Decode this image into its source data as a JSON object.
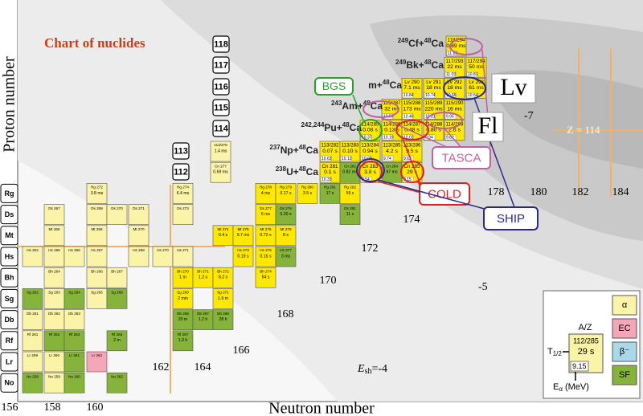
{
  "title": "Chart of nuclides",
  "y_axis_label": "Proton number",
  "x_axis_label": "Neutron number",
  "elements": [
    "Rg",
    "Ds",
    "Mt",
    "Hs",
    "Bh",
    "Sg",
    "Db",
    "Rf",
    "Lr",
    "No"
  ],
  "proton_numbers": [
    "118",
    "117",
    "116",
    "115",
    "114",
    "113",
    "112"
  ],
  "neutron_numbers_bottom": [
    "156",
    "158",
    "160"
  ],
  "neutron_numbers_diagonal": [
    "162",
    "164",
    "166",
    "168",
    "170",
    "172",
    "174",
    "178",
    "180",
    "182",
    "184"
  ],
  "shell_contours": [
    "-7",
    "-5"
  ],
  "shell_energy_label": {
    "symbol": "E",
    "subscript": "sh",
    "value": "=-4"
  },
  "reactions": [
    {
      "pre": "249",
      "target": "Cf+",
      "sup": "48",
      "beam": "Ca"
    },
    {
      "pre": "249",
      "target": "Bk+",
      "sup": "48",
      "beam": "Ca"
    },
    {
      "target": "m+",
      "sup": "48",
      "beam": "Ca"
    },
    {
      "pre": "243",
      "target": "Am+",
      "sup": "48",
      "beam": "Ca"
    },
    {
      "pre": "242,244",
      "target": "Pu+",
      "sup": "48",
      "beam": "Ca"
    },
    {
      "pre": "237",
      "target": "Np+",
      "sup": "48",
      "beam": "Ca"
    },
    {
      "pre": "238",
      "target": "U+",
      "sup": "48",
      "beam": "Ca"
    }
  ],
  "labs": {
    "bgs": "BGS",
    "tasca": "TASCA",
    "cold": "COLD",
    "ship": "SHIP"
  },
  "big_symbols": {
    "lv": "Lv",
    "fl": "Fl"
  },
  "z114_label": "Z = 114",
  "legend": {
    "modes": [
      {
        "label": "α",
        "color": "#fbf3a8"
      },
      {
        "label": "EC",
        "color": "#f4a7b9"
      },
      {
        "label": "β⁻",
        "color": "#a9d9e8"
      },
      {
        "label": "SF",
        "color": "#86b43a"
      }
    ],
    "mass_label": "A/Z",
    "cell": [
      "112/285",
      "29 s",
      "9.15"
    ],
    "half_life": {
      "symbol": "T",
      "subscript": "1/2"
    },
    "energy": {
      "symbol": "E",
      "subscript": "α",
      "unit": "(MeV)"
    }
  },
  "rows": [
    {
      "cells": [
        {
          "lines": [
            "118/294",
            "0.89 ms",
            "11.65"
          ],
          "color": "#ffe800"
        }
      ]
    },
    {
      "cells": [
        {
          "lines": [
            "117/293",
            "22 ms",
            "11.03"
          ],
          "color": "#ffe800"
        },
        {
          "lines": [
            "117/294",
            "50 ms",
            "10.81"
          ],
          "color": "#ffe800"
        }
      ]
    },
    {
      "cells": [
        {
          "lines": [
            "Lv 290",
            "7.1 ms",
            "10.84"
          ],
          "color": "#ffe800"
        },
        {
          "lines": [
            "Lv 291",
            "18 ms",
            "10.74"
          ],
          "color": "#ffe800"
        },
        {
          "lines": [
            "Lv 292",
            "18 ms",
            "10.66"
          ],
          "color": "#ffe800"
        },
        {
          "lines": [
            "Lv 293",
            "61 ms",
            "10.54"
          ],
          "color": "#ffe800"
        }
      ]
    },
    {
      "cells": [
        {
          "lines": [
            "115/287",
            "32 ms",
            "10.59"
          ],
          "color": "#ffe800"
        },
        {
          "lines": [
            "115/288",
            "173 ms",
            "10.46"
          ],
          "color": "#ffe800"
        },
        {
          "lines": [
            "115/289",
            "220 ms",
            "10.31"
          ],
          "color": "#ffe800"
        },
        {
          "lines": [
            "115/290",
            "16 ms",
            "9.95"
          ],
          "color": "#ffe800"
        }
      ]
    },
    {
      "cells": [
        {
          "lines": [
            "114/285",
            "0.08 s",
            "10.37"
          ],
          "color": "#ffe800"
        },
        {
          "lines": [
            "114/286",
            "0.13 s",
            "10.19"
          ],
          "color": "#ffe800"
        },
        {
          "lines": [
            "114/287",
            "0.48 s",
            "10.02"
          ],
          "color": "#ffe800"
        },
        {
          "lines": [
            "114/288",
            "0.80 s",
            "9.94"
          ],
          "color": "#ffe800"
        },
        {
          "lines": [
            "114/289",
            "2.6 s",
            "9.82"
          ],
          "color": "#ffe800"
        }
      ]
    },
    {
      "cells": [
        {
          "lines": [
            "113/278",
            "1.4 ms"
          ],
          "color": "#fbf3a8"
        },
        {
          "lines": [
            "113/282",
            "0.07 s",
            "10.63"
          ],
          "color": "#ffe800"
        },
        {
          "lines": [
            "113/283",
            "0.10 s",
            "10.12"
          ],
          "color": "#ffe800"
        },
        {
          "lines": [
            "113/284",
            "0.94 s",
            "10.00"
          ],
          "color": "#ffe800"
        },
        {
          "lines": [
            "113/285",
            "4.2 s",
            "9.74"
          ],
          "color": "#ffe800"
        },
        {
          "lines": [
            "113/286",
            "9.5 s",
            "9.63"
          ],
          "color": "#ffe800"
        }
      ]
    },
    {
      "cells": [
        {
          "lines": [
            "Cn 277",
            "0.69 ms"
          ],
          "color": "#fbf3a8"
        },
        {
          "lines": [
            "Cn 281",
            "0.1 s",
            "10.33"
          ],
          "color": "#ffe800"
        },
        {
          "lines": [
            "Cn 282",
            "0.82 ms"
          ],
          "color": "#86b43a"
        },
        {
          "lines": [
            "Cn 283",
            "3.8 s",
            "9.54"
          ],
          "color": "#ffe800"
        },
        {
          "lines": [
            "Cn 284",
            "97 ms"
          ],
          "color": "#86b43a"
        },
        {
          "lines": [
            "Cn 285",
            "29 s",
            "9.15"
          ],
          "color": "#ffe800"
        }
      ]
    },
    {
      "cells": [
        {
          "lines": [
            "Rg 272",
            "3.8 ms"
          ],
          "color": "#fbf3a8"
        },
        {
          "lines": [
            "Rg 274",
            "6.4 ms"
          ],
          "color": "#fbf3a8"
        },
        {
          "lines": [
            "Rg 278",
            "4 ms"
          ],
          "color": "#ffe800"
        },
        {
          "lines": [
            "Rg 279",
            "0.17 s"
          ],
          "color": "#ffe800"
        },
        {
          "lines": [
            "Rg 280",
            "3.5 s"
          ],
          "color": "#ffe800"
        },
        {
          "lines": [
            "Rg 281",
            "17 s"
          ],
          "color": "#86b43a"
        },
        {
          "lines": [
            "Rg 282",
            "59 s"
          ],
          "color": "#ffe800"
        }
      ]
    },
    {
      "cells": [
        {
          "lines": [
            "Ds 267"
          ],
          "color": "#fbf3a8"
        },
        {
          "lines": [
            "Ds 269"
          ],
          "color": "#fbf3a8"
        },
        {
          "lines": [
            "Ds 270"
          ],
          "color": "#fbf3a8"
        },
        {
          "lines": [
            "Ds 271"
          ],
          "color": "#fbf3a8"
        },
        {
          "lines": [
            "Ds 273"
          ],
          "color": "#fbf3a8"
        },
        {
          "lines": [
            "Ds 277",
            "6 ms"
          ],
          "color": "#ffe800"
        },
        {
          "lines": [
            "Ds 279",
            "0.20 s"
          ],
          "color": "#86b43a"
        },
        {
          "lines": [
            "Ds 281",
            "11 s"
          ],
          "color": "#86b43a"
        }
      ]
    },
    {
      "cells": [
        {
          "lines": [
            "Mt 266"
          ],
          "color": "#fbf3a8"
        },
        {
          "lines": [
            "Mt 268"
          ],
          "color": "#fbf3a8"
        },
        {
          "lines": [
            "Mt 270"
          ],
          "color": "#fbf3a8"
        },
        {
          "lines": [
            "Mt 274",
            "0.4 s"
          ],
          "color": "#ffe800"
        },
        {
          "lines": [
            "Mt 275",
            "9.7 ms"
          ],
          "color": "#ffe800"
        },
        {
          "lines": [
            "Mt 276",
            "0.72 s"
          ],
          "color": "#ffe800"
        },
        {
          "lines": [
            "Mt 278",
            "8 s"
          ],
          "color": "#ffe800"
        }
      ]
    },
    {
      "cells": [
        {
          "lines": [
            "Hs 264"
          ],
          "color": "#fbf3a8"
        },
        {
          "lines": [
            "Hs 265"
          ],
          "color": "#fbf3a8"
        },
        {
          "lines": [
            "Hs 266"
          ],
          "color": "#fbf3a8"
        },
        {
          "lines": [
            "Hs 267"
          ],
          "color": "#fbf3a8"
        },
        {
          "lines": [
            "Hs 269"
          ],
          "color": "#fbf3a8"
        },
        {
          "lines": [
            "Hs 270"
          ],
          "color": "#fbf3a8"
        },
        {
          "lines": [
            "Hs 271"
          ],
          "color": "#fbf3a8"
        },
        {
          "lines": [
            "Hs 273",
            "0.19 s"
          ],
          "color": "#ffe800"
        },
        {
          "lines": [
            "Hs 275",
            "0.15 s"
          ],
          "color": "#ffe800"
        },
        {
          "lines": [
            "Hs 277",
            "3 ms"
          ],
          "color": "#86b43a"
        }
      ]
    },
    {
      "cells": [
        {
          "lines": [
            "Bh 264"
          ],
          "color": "#fbf3a8"
        },
        {
          "lines": [
            "Bh 266"
          ],
          "color": "#fbf3a8"
        },
        {
          "lines": [
            "Bh 267"
          ],
          "color": "#fbf3a8"
        },
        {
          "lines": [
            "Bh 270",
            "1 m"
          ],
          "color": "#ffe800"
        },
        {
          "lines": [
            "Bh 271",
            "1.2 s"
          ],
          "color": "#ffe800"
        },
        {
          "lines": [
            "Bh 272",
            "8.2 s"
          ],
          "color": "#ffe800"
        },
        {
          "lines": [
            "Bh 274",
            "54 s"
          ],
          "color": "#ffe800"
        }
      ]
    },
    {
      "cells": [
        {
          "lines": [
            "Sg 262"
          ],
          "color": "#86b43a"
        },
        {
          "lines": [
            "Sg 263"
          ],
          "color": "#fbf3a8"
        },
        {
          "lines": [
            "Sg 264"
          ],
          "color": "#86b43a"
        },
        {
          "lines": [
            "Sg 265"
          ],
          "color": "#fbf3a8"
        },
        {
          "lines": [
            "Sg 266"
          ],
          "color": "#86b43a"
        },
        {
          "lines": [
            "Sg 269",
            "2 min"
          ],
          "color": "#ffe800"
        },
        {
          "lines": [
            "Sg 271",
            "1.9 m"
          ],
          "color": "#ffe800"
        }
      ]
    },
    {
      "cells": [
        {
          "lines": [
            "Db 261"
          ],
          "color": "#fbf3a8"
        },
        {
          "lines": [
            "Db 262"
          ],
          "color": "#fbf3a8"
        },
        {
          "lines": [
            "Db 263"
          ],
          "color": "#fbf3a8"
        },
        {
          "lines": [
            "Db 266",
            "20 m"
          ],
          "color": "#86b43a"
        },
        {
          "lines": [
            "Db 267",
            "1.2 h"
          ],
          "color": "#86b43a"
        },
        {
          "lines": [
            "Db 268",
            "28 h"
          ],
          "color": "#86b43a"
        }
      ]
    },
    {
      "cells": [
        {
          "lines": [
            "Rf 261"
          ],
          "color": "#fbf3a8"
        },
        {
          "lines": [
            "Rf 262"
          ],
          "color": "#86b43a"
        },
        {
          "lines": [
            "Rf 263"
          ],
          "color": "#86b43a"
        },
        {
          "lines": [
            "Rf 265",
            "2 m"
          ],
          "color": "#86b43a"
        },
        {
          "lines": [
            "Rf 267",
            "1.3 h"
          ],
          "color": "#86b43a"
        }
      ]
    },
    {
      "cells": [
        {
          "lines": [
            "Lr 259"
          ],
          "color": "#fbf3a8"
        },
        {
          "lines": [
            "Lr 260"
          ],
          "color": "#fbf3a8"
        },
        {
          "lines": [
            "Lr 261"
          ],
          "color": "#86b43a"
        },
        {
          "lines": [
            "Lr 262"
          ],
          "color": "#f4a7b9"
        }
      ]
    },
    {
      "cells": [
        {
          "lines": [
            "No 258"
          ],
          "color": "#86b43a"
        },
        {
          "lines": [
            "No 259"
          ],
          "color": "#fbf3a8"
        },
        {
          "lines": [
            "No 260"
          ],
          "color": "#86b43a"
        },
        {
          "lines": [
            "No 262"
          ],
          "color": "#86b43a"
        }
      ]
    }
  ]
}
